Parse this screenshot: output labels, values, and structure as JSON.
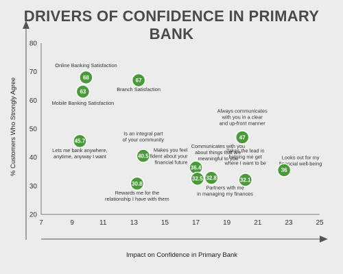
{
  "chart_data": {
    "type": "scatter",
    "title": "DRIVERS OF CONFIDENCE IN PRIMARY BANK",
    "xlabel": "Impact on Confidence in Primary Bank",
    "ylabel": "% Customers Who Strongly Agree",
    "xlim": [
      7,
      25
    ],
    "ylim": [
      20,
      80
    ],
    "xticks": [
      7,
      9,
      11,
      13,
      15,
      17,
      19,
      21,
      23,
      25
    ],
    "yticks": [
      20,
      30,
      40,
      50,
      60,
      70,
      80
    ],
    "grid": false,
    "marker_color": "#4a9a3a",
    "points": [
      {
        "x": 9.9,
        "y": 68,
        "label": "68",
        "annotation": [
          "Online Banking Satisfaction"
        ]
      },
      {
        "x": 9.7,
        "y": 63,
        "label": "63",
        "annotation": [
          "Mobile Banking Satisfaction"
        ]
      },
      {
        "x": 13.3,
        "y": 67,
        "label": "67",
        "annotation": [
          "Branch Satisfaction"
        ]
      },
      {
        "x": 9.5,
        "y": 45.7,
        "label": "45.7",
        "annotation": [
          "Lets me bank anywhere,",
          "anytime, anyway I want"
        ]
      },
      {
        "x": 13.6,
        "y": 40.5,
        "label": "40.5",
        "annotation": [
          "Is an integral part",
          "of your community"
        ]
      },
      {
        "x": 13.2,
        "y": 30.8,
        "label": "30.8",
        "annotation": [
          "Rewards me for the",
          "relationship I have with them"
        ]
      },
      {
        "x": 17.0,
        "y": 36.4,
        "label": "36.4",
        "annotation": [
          "Makes you feel",
          "confident about your",
          "financial future"
        ]
      },
      {
        "x": 17.1,
        "y": 32.5,
        "label": "32.5",
        "annotation": [
          "Communicates with you",
          "about things that are",
          "meaningful to you"
        ]
      },
      {
        "x": 18.0,
        "y": 32.8,
        "label": "32.8",
        "annotation": [
          "Partners with me",
          "in managing my finances"
        ]
      },
      {
        "x": 20.0,
        "y": 47,
        "label": "47",
        "annotation": [
          "Always communicates",
          "with you in a clear",
          "and up-front manner"
        ]
      },
      {
        "x": 20.2,
        "y": 32.1,
        "label": "32.1",
        "annotation": [
          "Takes the lead in",
          "helping me get",
          "where I want to be"
        ]
      },
      {
        "x": 22.7,
        "y": 35.5,
        "label": "36",
        "annotation": [
          "Looks out for my",
          "financial well-being"
        ]
      }
    ]
  }
}
